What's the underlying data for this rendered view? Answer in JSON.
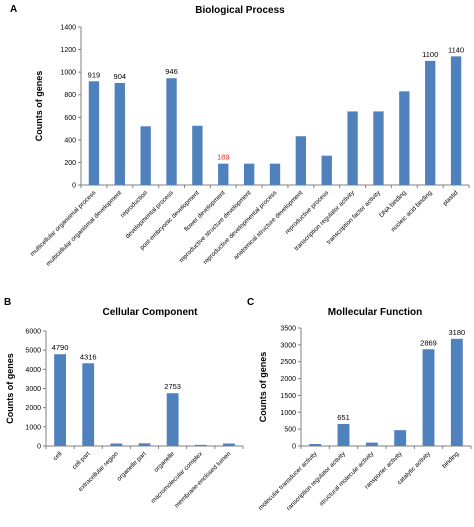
{
  "chart_data": [
    {
      "panel": "A",
      "type": "bar",
      "title": "Biological Process",
      "ylabel": "Counts of genes",
      "xlabel": "",
      "ylim": [
        0,
        1400
      ],
      "yticks": [
        0,
        200,
        400,
        600,
        800,
        1000,
        1200,
        1400
      ],
      "categories": [
        "multicellular organismal process",
        "multicellular organismal development",
        "reproduction",
        "developmental process",
        "post-embryonic development",
        "flower development",
        "reproductive structure development",
        "reproductive developmental process",
        "anatomical structure development",
        "reproductive process",
        "transcription regulator activity",
        "transcription factor activity",
        "DNA binding",
        "nucleic acid binding",
        "plastid"
      ],
      "values": [
        919,
        904,
        520,
        946,
        525,
        189,
        189,
        189,
        432,
        260,
        652,
        652,
        830,
        1100,
        1140
      ],
      "data_labels": [
        "919",
        "904",
        "",
        "946",
        "",
        "189",
        "",
        "",
        "",
        "",
        "",
        "",
        "",
        "1100",
        "1140"
      ],
      "highlight_label_index": 5,
      "highlight_color": "#e8221b",
      "bar_color": "#4f81bd",
      "grid": false
    },
    {
      "panel": "B",
      "type": "bar",
      "title": "Cellular Component",
      "ylabel": "Counts of genes",
      "xlabel": "",
      "ylim": [
        0,
        6000
      ],
      "yticks": [
        0,
        1000,
        2000,
        3000,
        4000,
        5000,
        6000
      ],
      "categories": [
        "cell",
        "cell part",
        "extracellular region",
        "organelle part",
        "organelle",
        "macromolecular complex",
        "membrane-enclosed lumen"
      ],
      "values": [
        4790,
        4316,
        130,
        140,
        2753,
        60,
        130
      ],
      "data_labels": [
        "4790",
        "4316",
        "",
        "",
        "2753",
        "",
        ""
      ],
      "bar_color": "#4f81bd",
      "grid": false
    },
    {
      "panel": "C",
      "type": "bar",
      "title": "Mollecular Function",
      "ylabel": "Counts of genes",
      "xlabel": "",
      "ylim": [
        0,
        3500
      ],
      "yticks": [
        0,
        500,
        1000,
        1500,
        2000,
        2500,
        3000,
        3500
      ],
      "categories": [
        "molecular transducer activity",
        "ranscription regulator activity",
        "structural molecule activity",
        "ransporter activity",
        "catalytic activity",
        "binding"
      ],
      "values": [
        60,
        651,
        100,
        470,
        2869,
        3180
      ],
      "data_labels": [
        "",
        "651",
        "",
        "",
        "2869",
        "3180"
      ],
      "bar_color": "#4f81bd",
      "grid": false
    }
  ]
}
